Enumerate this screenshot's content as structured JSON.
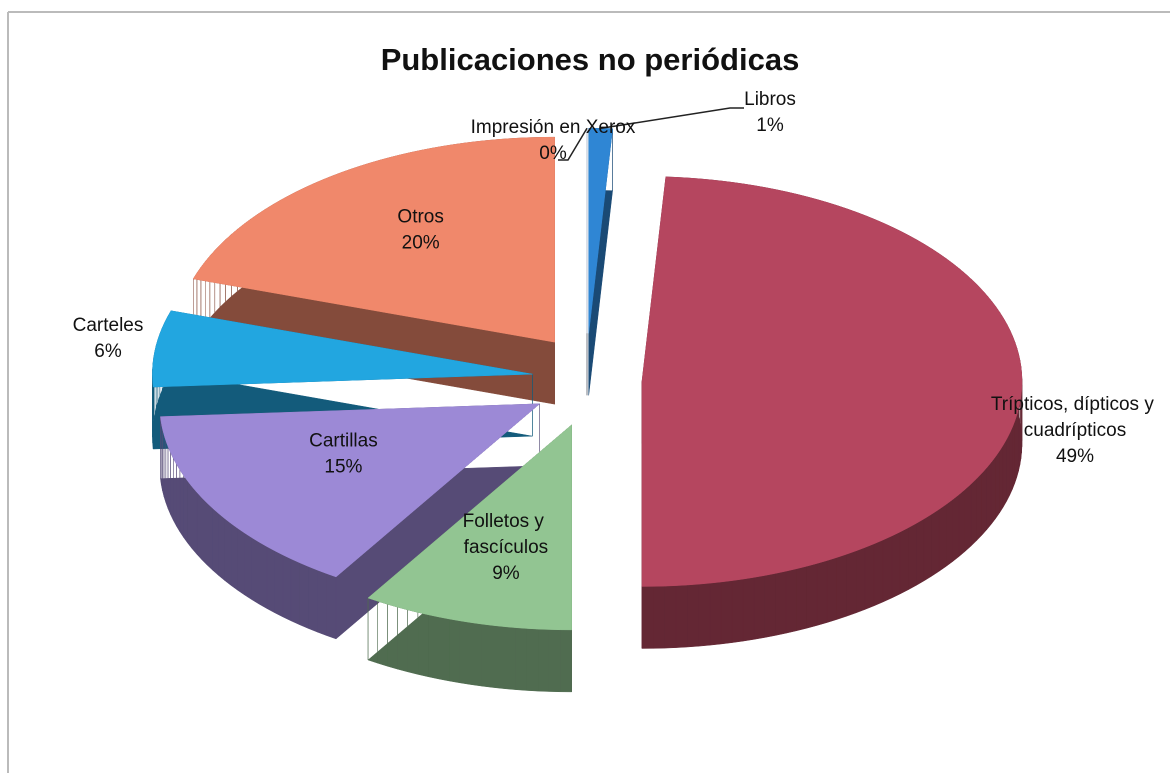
{
  "chart_data": {
    "type": "pie",
    "title": "Publicaciones no periódicas",
    "categories": [
      "Libros",
      "Trípticos, dípticos y cuadrípticos",
      "Folletos y fascículos",
      "Cartillas",
      "Carteles",
      "Otros",
      "Impresión en Xerox"
    ],
    "values": [
      1,
      49,
      9,
      15,
      6,
      20,
      0
    ],
    "value_labels": [
      "1%",
      "49%",
      "9%",
      "15%",
      "6%",
      "20%",
      "0%"
    ],
    "colors": [
      "#2f86d4",
      "#b5465f",
      "#92c592",
      "#9c89d6",
      "#22a6e0",
      "#f0886b",
      "#cdd8ea"
    ]
  }
}
